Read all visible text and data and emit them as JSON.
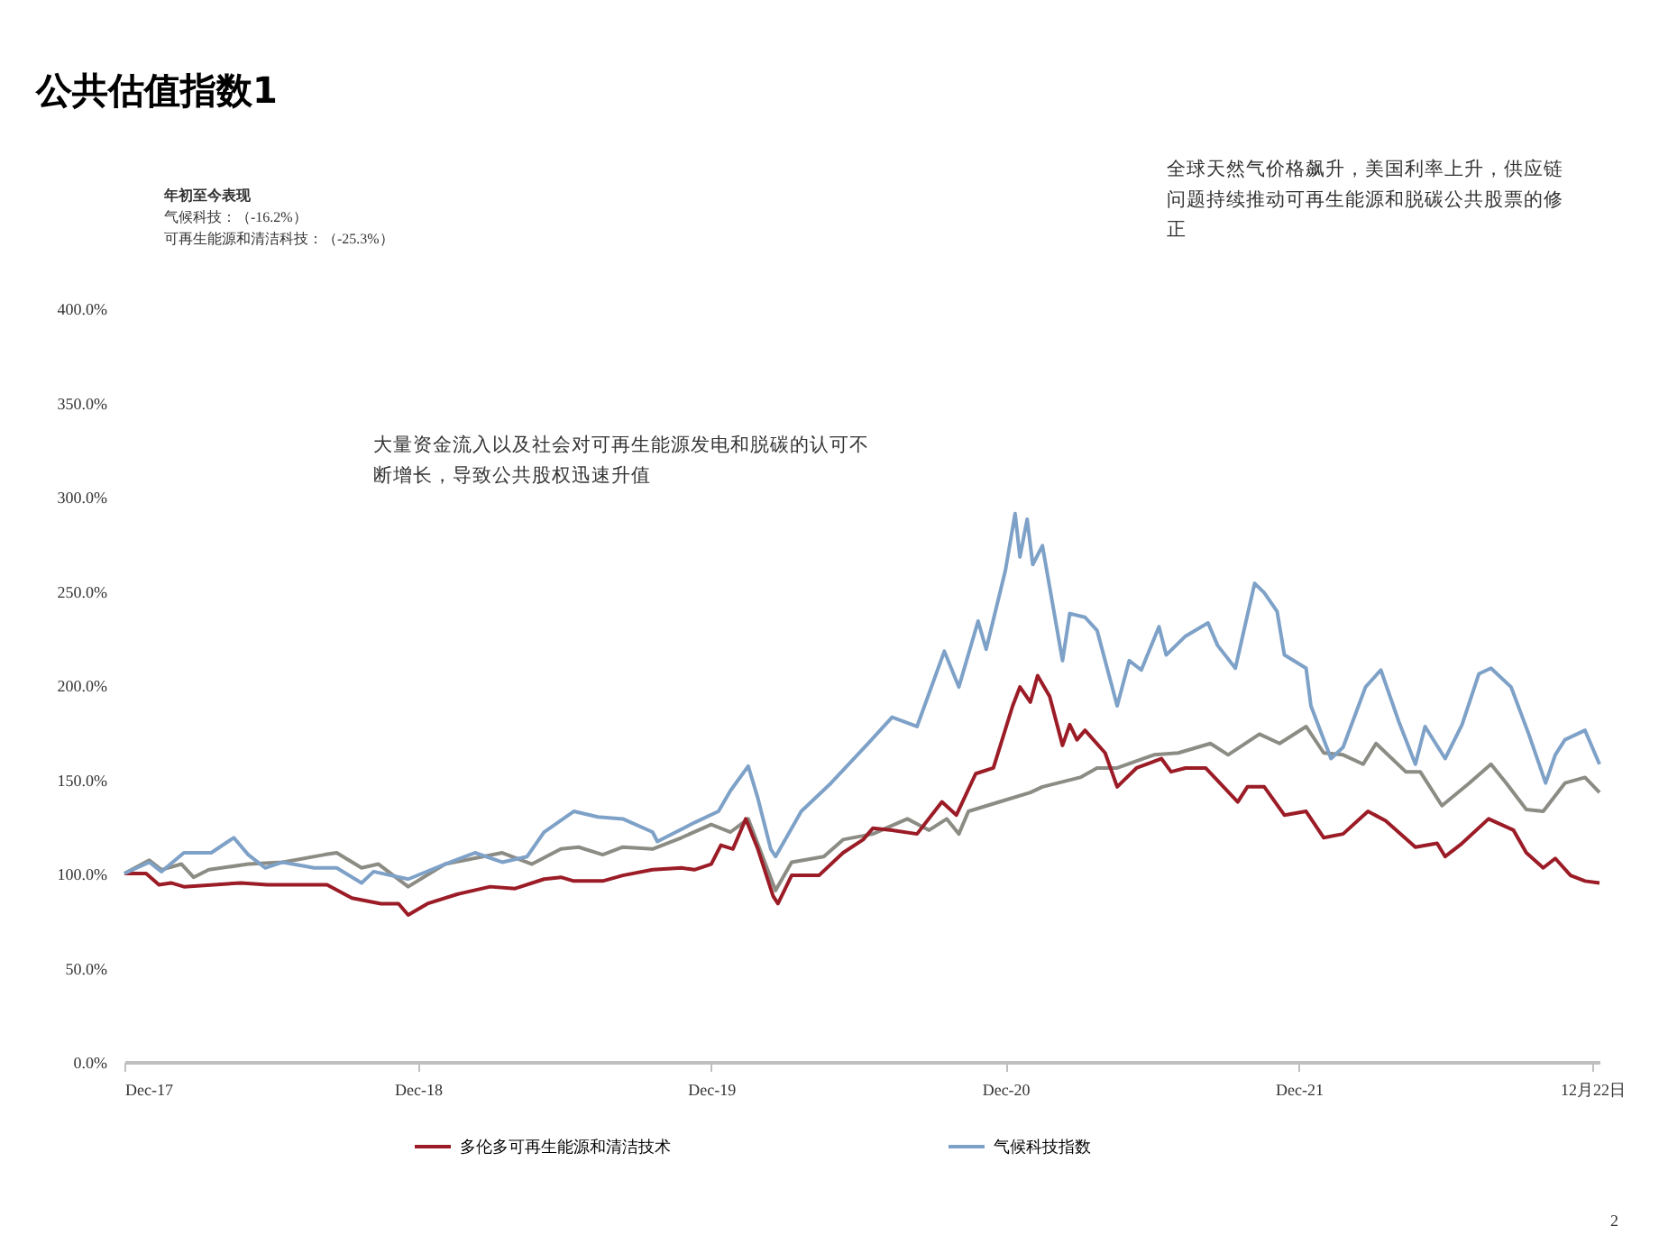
{
  "chart_data": {
    "type": "line",
    "title": "公共估值指数1",
    "xlim": [
      "2017-12-01",
      "2022-12-10"
    ],
    "xticks": [
      {
        "value": "2017-12-01",
        "label": "Dec-17"
      },
      {
        "value": "2018-12-01",
        "label": "Dec-18"
      },
      {
        "value": "2019-12-01",
        "label": "Dec-19"
      },
      {
        "value": "2020-12-01",
        "label": "Dec-20"
      },
      {
        "value": "2021-12-01",
        "label": "Dec-21"
      },
      {
        "value": "2022-12-01",
        "label": "12月22日"
      }
    ],
    "ylim": [
      0,
      400
    ],
    "yticks": [
      {
        "value": 0,
        "label": "0.0%"
      },
      {
        "value": 50,
        "label": "50.0%"
      },
      {
        "value": 100,
        "label": "100.0%"
      },
      {
        "value": 150,
        "label": "150.0%"
      },
      {
        "value": 200,
        "label": "200.0%"
      },
      {
        "value": 250,
        "label": "250.0%"
      },
      {
        "value": 300,
        "label": "300.0%"
      },
      {
        "value": 350,
        "label": "350.0%"
      },
      {
        "value": 400,
        "label": "400.0%"
      }
    ],
    "legend": "bottom",
    "line_style": "solid",
    "series": [
      {
        "color": "#8c8c84",
        "x": [
          "2017-12-01",
          "2018-01-01",
          "2018-01-16",
          "2018-02-10",
          "2018-02-25",
          "2018-03-16",
          "2018-05-04",
          "2018-06-16",
          "2018-08-07",
          "2018-08-22",
          "2018-09-22",
          "2018-10-13",
          "2018-11-19",
          "2019-01-04",
          "2019-03-16",
          "2019-04-22",
          "2019-05-28",
          "2019-06-19",
          "2019-07-19",
          "2019-08-13",
          "2019-09-19",
          "2019-10-25",
          "2019-12-01",
          "2019-12-25",
          "2020-01-16",
          "2020-02-19",
          "2020-03-10",
          "2020-04-19",
          "2020-05-13",
          "2020-06-19",
          "2020-08-01",
          "2020-08-28",
          "2020-09-19",
          "2020-10-04",
          "2020-10-16",
          "2020-12-01",
          "2021-01-01",
          "2021-01-16",
          "2021-03-04",
          "2021-03-25",
          "2021-04-19",
          "2021-06-04",
          "2021-07-04",
          "2021-08-13",
          "2021-09-04",
          "2021-10-13",
          "2021-11-07",
          "2021-12-10",
          "2022-01-01",
          "2022-01-25",
          "2022-02-19",
          "2022-03-07",
          "2022-04-13",
          "2022-05-01",
          "2022-05-28",
          "2022-07-01",
          "2022-07-28",
          "2022-08-16",
          "2022-09-10",
          "2022-10-01",
          "2022-10-28",
          "2022-11-22",
          "2022-12-10"
        ],
        "values": [
          100,
          107,
          102,
          105,
          98,
          102,
          105,
          106,
          110,
          111,
          103,
          105,
          93,
          105,
          111,
          105,
          113,
          114,
          110,
          114,
          113,
          119,
          126,
          122,
          129,
          91,
          106,
          109,
          118,
          121,
          129,
          123,
          129,
          121,
          133,
          139,
          143,
          146,
          151,
          156,
          156,
          163,
          164,
          169,
          163,
          174,
          169,
          178,
          164,
          163,
          158,
          169,
          154,
          154,
          136,
          148,
          158,
          148,
          134,
          133,
          148,
          151,
          143
        ]
      },
      {
        "name": "多伦多可再生能源和清洁技术",
        "color": "#9b1c26",
        "x": [
          "2017-12-01",
          "2017-12-28",
          "2018-01-13",
          "2018-01-28",
          "2018-02-13",
          "2018-04-25",
          "2018-05-28",
          "2018-08-10",
          "2018-09-10",
          "2018-10-16",
          "2018-11-07",
          "2018-11-19",
          "2018-12-13",
          "2019-01-19",
          "2019-03-01",
          "2019-04-01",
          "2019-05-07",
          "2019-05-28",
          "2019-06-13",
          "2019-07-19",
          "2019-08-13",
          "2019-09-19",
          "2019-10-25",
          "2019-11-10",
          "2019-12-01",
          "2019-12-13",
          "2019-12-28",
          "2020-01-13",
          "2020-01-28",
          "2020-02-16",
          "2020-02-22",
          "2020-03-10",
          "2020-04-13",
          "2020-05-13",
          "2020-06-07",
          "2020-06-19",
          "2020-07-13",
          "2020-08-13",
          "2020-09-13",
          "2020-10-01",
          "2020-10-25",
          "2020-11-16",
          "2020-12-10",
          "2020-12-19",
          "2021-01-01",
          "2021-01-10",
          "2021-01-25",
          "2021-02-10",
          "2021-02-19",
          "2021-02-28",
          "2021-03-10",
          "2021-04-04",
          "2021-04-19",
          "2021-05-13",
          "2021-06-13",
          "2021-06-25",
          "2021-07-13",
          "2021-08-07",
          "2021-09-16",
          "2021-09-28",
          "2021-10-19",
          "2021-11-13",
          "2021-12-10",
          "2022-01-01",
          "2022-01-25",
          "2022-02-25",
          "2022-03-19",
          "2022-04-25",
          "2022-05-22",
          "2022-06-01",
          "2022-06-22",
          "2022-07-25",
          "2022-08-25",
          "2022-09-10",
          "2022-10-01",
          "2022-10-16",
          "2022-11-04",
          "2022-11-22",
          "2022-12-10"
        ],
        "values": [
          100,
          100,
          94,
          95,
          93,
          95,
          94,
          94,
          87,
          84,
          84,
          78,
          84,
          89,
          93,
          92,
          97,
          98,
          96,
          96,
          99,
          102,
          103,
          102,
          105,
          115,
          113,
          129,
          113,
          88,
          84,
          99,
          99,
          111,
          118,
          124,
          123,
          121,
          138,
          131,
          153,
          156,
          189,
          199,
          191,
          205,
          194,
          168,
          179,
          171,
          176,
          164,
          146,
          156,
          161,
          154,
          156,
          156,
          138,
          146,
          146,
          131,
          133,
          119,
          121,
          133,
          128,
          114,
          116,
          109,
          116,
          129,
          123,
          111,
          103,
          108,
          99,
          96,
          95
        ]
      },
      {
        "name": "气候科技指数",
        "color": "#7ea1c8",
        "x": [
          "2017-12-01",
          "2018-01-01",
          "2018-01-16",
          "2018-02-13",
          "2018-03-19",
          "2018-04-16",
          "2018-05-04",
          "2018-05-25",
          "2018-06-16",
          "2018-07-25",
          "2018-08-22",
          "2018-09-22",
          "2018-10-07",
          "2018-11-19",
          "2019-01-04",
          "2019-02-10",
          "2019-03-16",
          "2019-04-16",
          "2019-05-07",
          "2019-06-13",
          "2019-07-13",
          "2019-08-13",
          "2019-09-19",
          "2019-09-25",
          "2019-11-10",
          "2019-12-10",
          "2019-12-25",
          "2020-01-16",
          "2020-01-28",
          "2020-02-13",
          "2020-02-19",
          "2020-03-22",
          "2020-04-28",
          "2020-06-13",
          "2020-07-13",
          "2020-08-13",
          "2020-09-16",
          "2020-10-04",
          "2020-10-28",
          "2020-11-07",
          "2020-12-01",
          "2020-12-13",
          "2020-12-19",
          "2020-12-28",
          "2021-01-04",
          "2021-01-16",
          "2021-02-10",
          "2021-02-19",
          "2021-03-10",
          "2021-03-25",
          "2021-04-19",
          "2021-05-04",
          "2021-05-19",
          "2021-06-10",
          "2021-06-19",
          "2021-07-13",
          "2021-08-10",
          "2021-08-22",
          "2021-09-13",
          "2021-10-07",
          "2021-10-19",
          "2021-11-04",
          "2021-11-13",
          "2021-12-10",
          "2021-12-16",
          "2022-01-10",
          "2022-01-25",
          "2022-02-22",
          "2022-03-13",
          "2022-04-04",
          "2022-04-25",
          "2022-05-07",
          "2022-06-01",
          "2022-06-22",
          "2022-07-13",
          "2022-07-28",
          "2022-08-22",
          "2022-09-13",
          "2022-10-04",
          "2022-10-16",
          "2022-10-28",
          "2022-11-22",
          "2022-12-10"
        ],
        "values": [
          100,
          106,
          101,
          111,
          111,
          119,
          110,
          103,
          106,
          103,
          103,
          95,
          101,
          97,
          105,
          111,
          106,
          109,
          122,
          133,
          130,
          129,
          122,
          117,
          127,
          133,
          144,
          157,
          140,
          113,
          109,
          133,
          148,
          169,
          183,
          178,
          218,
          199,
          234,
          219,
          261,
          291,
          268,
          288,
          264,
          274,
          213,
          238,
          236,
          229,
          189,
          213,
          208,
          231,
          216,
          226,
          233,
          221,
          209,
          254,
          249,
          239,
          216,
          209,
          189,
          161,
          167,
          199,
          208,
          181,
          158,
          178,
          161,
          179,
          206,
          209,
          199,
          174,
          148,
          163,
          171,
          176,
          158
        ]
      }
    ],
    "annotations": [
      "年初至今表现",
      "气候科技：（-16.2%）",
      "可再生能源和清洁科技：（-25.3%）",
      "大量资金流入以及社会对可再生能源发电和脱碳的认可不断增长，导致公共股权迅速升值",
      "全球天然气价格飙升，美国利率上升，供应链问题持续推动可再生能源和脱碳公共股票的修正",
      "2"
    ]
  }
}
